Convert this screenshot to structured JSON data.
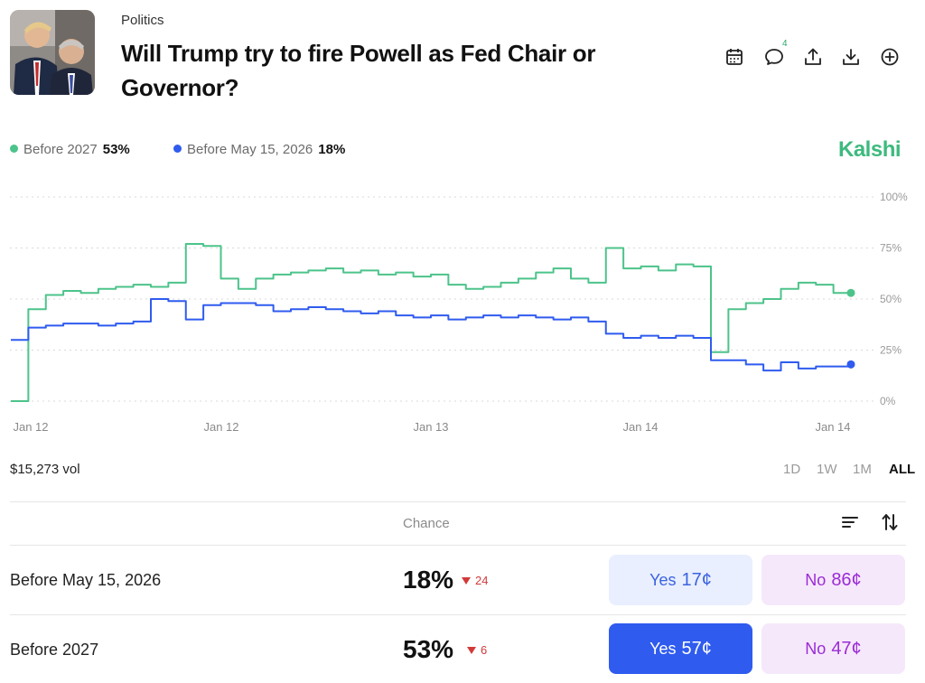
{
  "header": {
    "category": "Politics",
    "title": "Will Trump try to fire Powell as Fed Chair or Governor?",
    "comment_count": "4",
    "action_icons": [
      "calendar-icon",
      "comment-icon",
      "share-icon",
      "download-icon",
      "add-circle-icon"
    ]
  },
  "legend": [
    {
      "label": "Before 2027",
      "value": "53%",
      "color": "#4cc38a"
    },
    {
      "label": "Before May 15, 2026",
      "value": "18%",
      "color": "#2f5bef"
    }
  ],
  "brand": "Kalshi",
  "chart_data": {
    "type": "line",
    "y_ticks": [
      "100%",
      "75%",
      "50%",
      "25%",
      "0%"
    ],
    "x_ticks": [
      "Jan 12",
      "Jan 12",
      "Jan 13",
      "Jan 14",
      "Jan 14"
    ],
    "ylim": [
      0,
      100
    ],
    "grid": true,
    "series": [
      {
        "name": "Before 2027",
        "color": "#4cc38a",
        "values": [
          0,
          45,
          52,
          54,
          53,
          55,
          56,
          57,
          56,
          58,
          77,
          76,
          60,
          55,
          60,
          62,
          63,
          64,
          65,
          63,
          64,
          62,
          63,
          61,
          62,
          57,
          55,
          56,
          58,
          60,
          63,
          65,
          60,
          58,
          75,
          65,
          66,
          64,
          67,
          66,
          24,
          45,
          48,
          50,
          55,
          58,
          57,
          53,
          53
        ]
      },
      {
        "name": "Before May 15, 2026",
        "color": "#2f5bef",
        "values": [
          30,
          36,
          37,
          38,
          38,
          37,
          38,
          39,
          50,
          49,
          40,
          47,
          48,
          48,
          47,
          44,
          45,
          46,
          45,
          44,
          43,
          44,
          42,
          41,
          42,
          40,
          41,
          42,
          41,
          42,
          41,
          40,
          41,
          39,
          33,
          31,
          32,
          31,
          32,
          31,
          20,
          20,
          18,
          15,
          19,
          16,
          17,
          17,
          18
        ]
      }
    ]
  },
  "volume": "$15,273 vol",
  "ranges": [
    "1D",
    "1W",
    "1M",
    "ALL"
  ],
  "table": {
    "chance_header": "Chance",
    "rows": [
      {
        "label": "Before May 15, 2026",
        "chance": "18%",
        "delta": "24",
        "yes_label": "Yes",
        "yes_price": "17¢",
        "no_label": "No",
        "no_price": "86¢"
      },
      {
        "label": "Before 2027",
        "chance": "53%",
        "delta": "6",
        "yes_label": "Yes",
        "yes_price": "57¢",
        "no_label": "No",
        "no_price": "47¢"
      }
    ]
  }
}
